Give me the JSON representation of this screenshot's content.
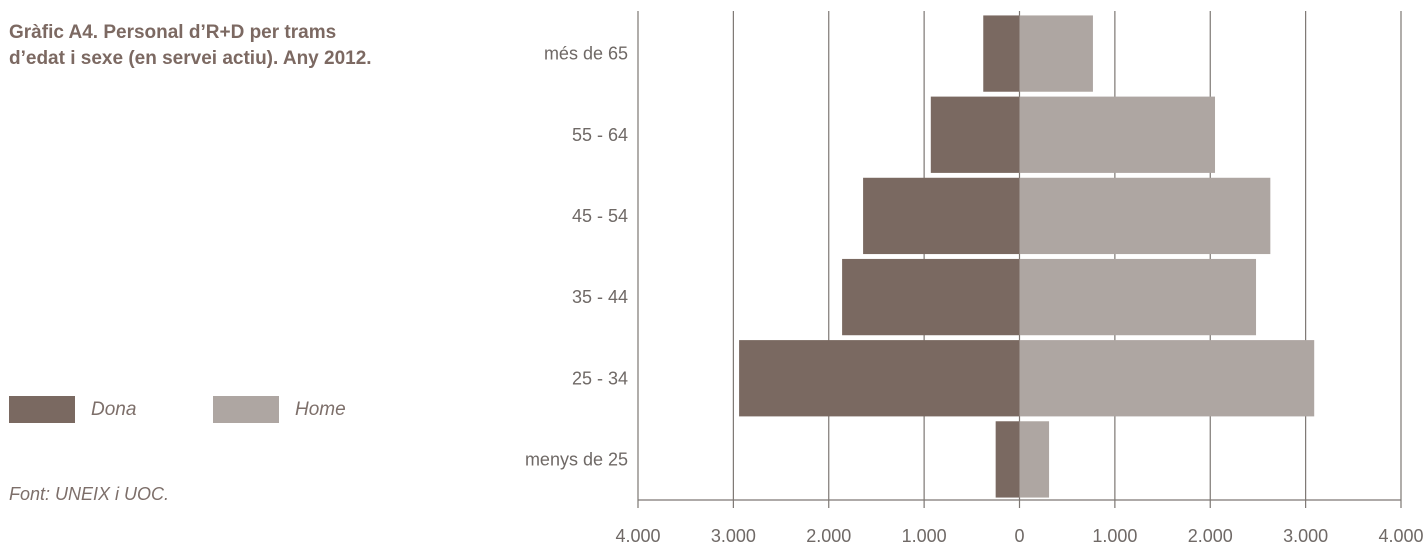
{
  "title": {
    "line1": "Gràfic A4. Personal d’R+D per trams",
    "line2": "d’edat  i sexe (en servei actiu). Any 2012."
  },
  "legend": {
    "items": [
      {
        "label": "Dona",
        "color": "#7a6961"
      },
      {
        "label": "Home",
        "color": "#aea6a2"
      }
    ]
  },
  "source": "Font: UNEIX i UOC.",
  "chart_data": {
    "type": "bar",
    "orientation": "horizontal",
    "layout": "population-pyramid",
    "title": "Gràfic A4. Personal d’R+D per trams d’edat  i sexe (en servei actiu). Any 2012.",
    "categories": [
      "més de 65",
      "55 - 64",
      "45 - 54",
      "35 - 44",
      "25 - 34",
      "menys de 25"
    ],
    "series": [
      {
        "name": "Dona",
        "values": [
          380,
          930,
          1640,
          1860,
          2940,
          250
        ],
        "color": "#7a6961",
        "side": "left"
      },
      {
        "name": "Home",
        "values": [
          770,
          2050,
          2630,
          2480,
          3090,
          310
        ],
        "color": "#aea6a2",
        "side": "right"
      }
    ],
    "xlim": [
      -4000,
      4000
    ],
    "xticks": [
      {
        "value": -4000,
        "label": "4.000"
      },
      {
        "value": -3000,
        "label": "3.000"
      },
      {
        "value": -2000,
        "label": "2.000"
      },
      {
        "value": -1000,
        "label": "1.000"
      },
      {
        "value": 0,
        "label": "0"
      },
      {
        "value": 1000,
        "label": "1.000"
      },
      {
        "value": 2000,
        "label": "2.000"
      },
      {
        "value": 3000,
        "label": "3.000"
      },
      {
        "value": 4000,
        "label": "4.000"
      }
    ],
    "xlabel": "",
    "ylabel": "",
    "grid": "vertical",
    "legend_position": "left",
    "source": "Font: UNEIX i UOC."
  }
}
